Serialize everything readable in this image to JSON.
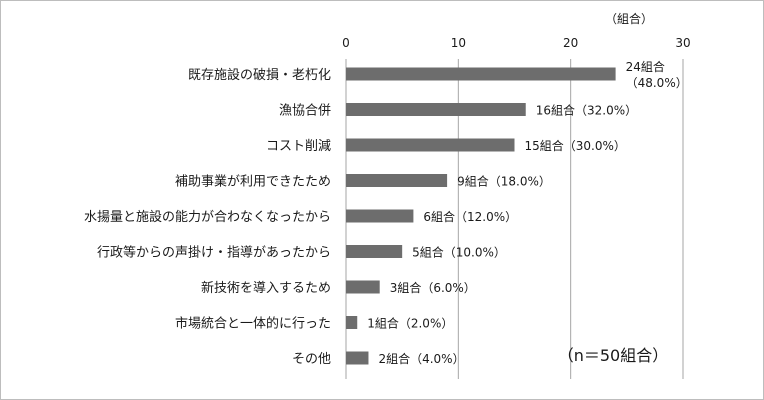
{
  "chart_data": {
    "type": "bar",
    "orientation": "horizontal",
    "unit_label": "（組合）",
    "categories": [
      "既存施設の破損・老朽化",
      "漁協合併",
      "コスト削減",
      "補助事業が利用できたため",
      "水揚量と施設の能力が合わなくなったから",
      "行政等からの声掛け・指導があったから",
      "新技術を導入するため",
      "市場統合と一体的に行った",
      "その他"
    ],
    "values": [
      24,
      16,
      15,
      9,
      6,
      5,
      3,
      1,
      2
    ],
    "data_labels": [
      [
        "24組合",
        "（48.0%）"
      ],
      [
        "16組合（32.0%）"
      ],
      [
        "15組合（30.0%）"
      ],
      [
        "9組合（18.0%）"
      ],
      [
        "6組合（12.0%）"
      ],
      [
        "5組合（10.0%）"
      ],
      [
        "3組合（6.0%）"
      ],
      [
        "1組合（2.0%）"
      ],
      [
        "2組合（4.0%）"
      ]
    ],
    "xlim": [
      0,
      30
    ],
    "xticks": [
      0,
      10,
      20,
      30
    ],
    "grid": true,
    "bar_color": "#6d6d6d",
    "annotation": "（n＝50組合）"
  }
}
